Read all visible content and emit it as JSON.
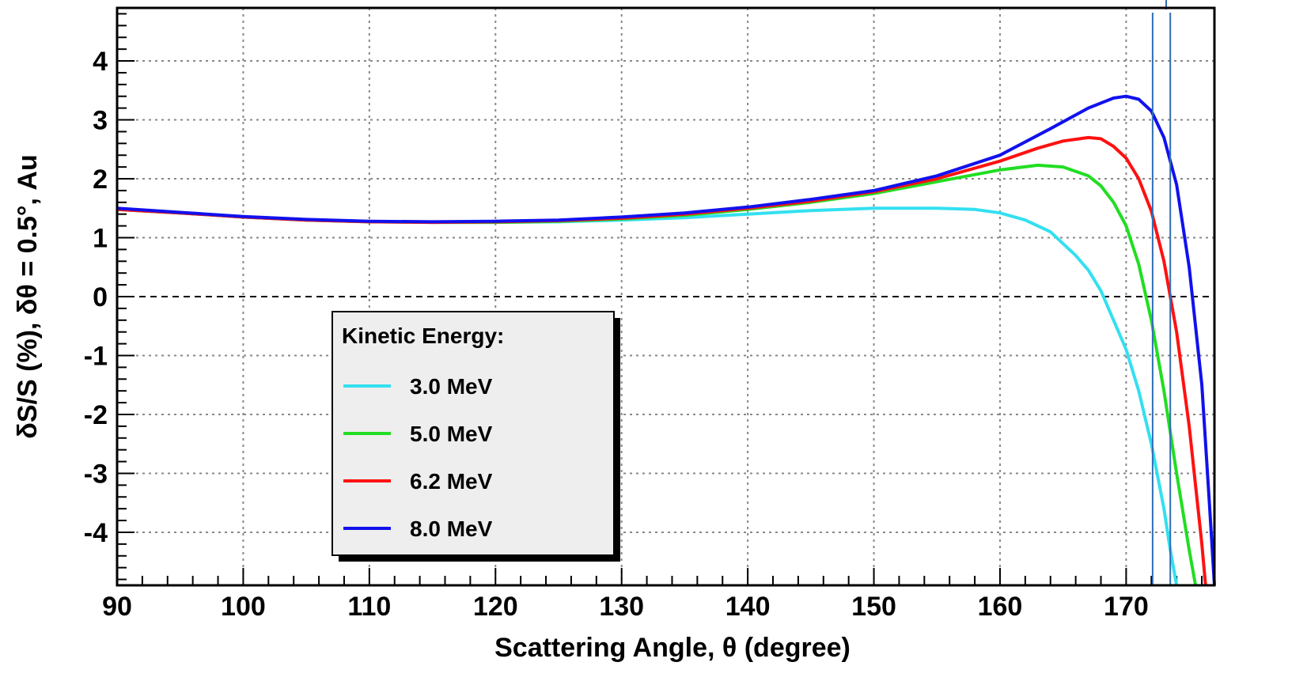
{
  "chart_data": {
    "type": "line",
    "title": "",
    "xlabel": "Scattering Angle, θ (degree)",
    "ylabel": "δS/S (%),   δθ = 0.5°, Au",
    "xlim": [
      90,
      177
    ],
    "ylim": [
      -4.9,
      4.9
    ],
    "x_ticks": [
      90,
      100,
      110,
      120,
      130,
      140,
      150,
      160,
      170
    ],
    "y_ticks": [
      -4,
      -3,
      -2,
      -1,
      0,
      1,
      2,
      3,
      4
    ],
    "x_tick_labels": [
      "90",
      "100",
      "110",
      "120",
      "130",
      "140",
      "150",
      "160",
      "170"
    ],
    "y_tick_labels": [
      "-4",
      "-3",
      "-2",
      "-1",
      "0",
      "1",
      "2",
      "3",
      "4"
    ],
    "grid": true,
    "zero_line_dashed": true,
    "legend": {
      "title": "Kinetic Energy:",
      "placement": "lower-left"
    },
    "series": [
      {
        "name": "3.0 MeV",
        "color": "#33e0f0",
        "x": [
          90,
          95,
          100,
          105,
          110,
          115,
          120,
          125,
          130,
          135,
          140,
          145,
          150,
          155,
          158,
          160,
          162,
          164,
          166,
          167,
          168,
          169,
          170,
          171,
          172,
          173,
          173.5,
          174
        ],
        "y": [
          1.48,
          1.42,
          1.35,
          1.3,
          1.27,
          1.26,
          1.26,
          1.27,
          1.3,
          1.34,
          1.4,
          1.46,
          1.5,
          1.5,
          1.48,
          1.42,
          1.3,
          1.1,
          0.7,
          0.45,
          0.1,
          -0.4,
          -0.9,
          -1.6,
          -2.5,
          -3.6,
          -4.3,
          -4.9
        ]
      },
      {
        "name": "5.0 MeV",
        "color": "#22dd22",
        "x": [
          90,
          95,
          100,
          105,
          110,
          115,
          120,
          125,
          130,
          135,
          140,
          145,
          150,
          155,
          160,
          163,
          165,
          167,
          168,
          169,
          170,
          171,
          172,
          173,
          174,
          175,
          175.5
        ],
        "y": [
          1.48,
          1.42,
          1.35,
          1.3,
          1.27,
          1.26,
          1.26,
          1.28,
          1.32,
          1.38,
          1.48,
          1.6,
          1.75,
          1.95,
          2.15,
          2.23,
          2.2,
          2.05,
          1.88,
          1.6,
          1.2,
          0.55,
          -0.4,
          -1.6,
          -3.0,
          -4.3,
          -4.9
        ]
      },
      {
        "name": "6.2 MeV",
        "color": "#ff1111",
        "x": [
          90,
          95,
          100,
          105,
          110,
          115,
          120,
          125,
          130,
          135,
          140,
          145,
          150,
          155,
          160,
          163,
          165,
          167,
          168,
          169,
          170,
          171,
          172,
          173,
          174,
          175,
          176,
          176.3
        ],
        "y": [
          1.48,
          1.42,
          1.35,
          1.3,
          1.27,
          1.26,
          1.27,
          1.29,
          1.33,
          1.4,
          1.5,
          1.62,
          1.78,
          2.0,
          2.3,
          2.52,
          2.64,
          2.7,
          2.68,
          2.55,
          2.35,
          2.0,
          1.45,
          0.6,
          -0.6,
          -2.2,
          -4.2,
          -4.9
        ]
      },
      {
        "name": "8.0 MeV",
        "color": "#1111ee",
        "x": [
          90,
          95,
          100,
          105,
          110,
          115,
          120,
          125,
          130,
          135,
          140,
          145,
          150,
          155,
          160,
          164,
          167,
          169,
          170,
          171,
          172,
          173,
          174,
          175,
          176,
          176.6,
          177
        ],
        "y": [
          1.5,
          1.43,
          1.36,
          1.31,
          1.28,
          1.27,
          1.28,
          1.3,
          1.35,
          1.42,
          1.52,
          1.65,
          1.8,
          2.05,
          2.4,
          2.85,
          3.2,
          3.37,
          3.4,
          3.35,
          3.15,
          2.7,
          1.9,
          0.5,
          -1.5,
          -3.5,
          -4.9
        ]
      }
    ],
    "annotations": [
      {
        "type": "vertical-line",
        "x": 172.1,
        "color": "#2f6db5"
      },
      {
        "type": "vertical-line",
        "x": 173.5,
        "color": "#2f6db5"
      }
    ]
  }
}
